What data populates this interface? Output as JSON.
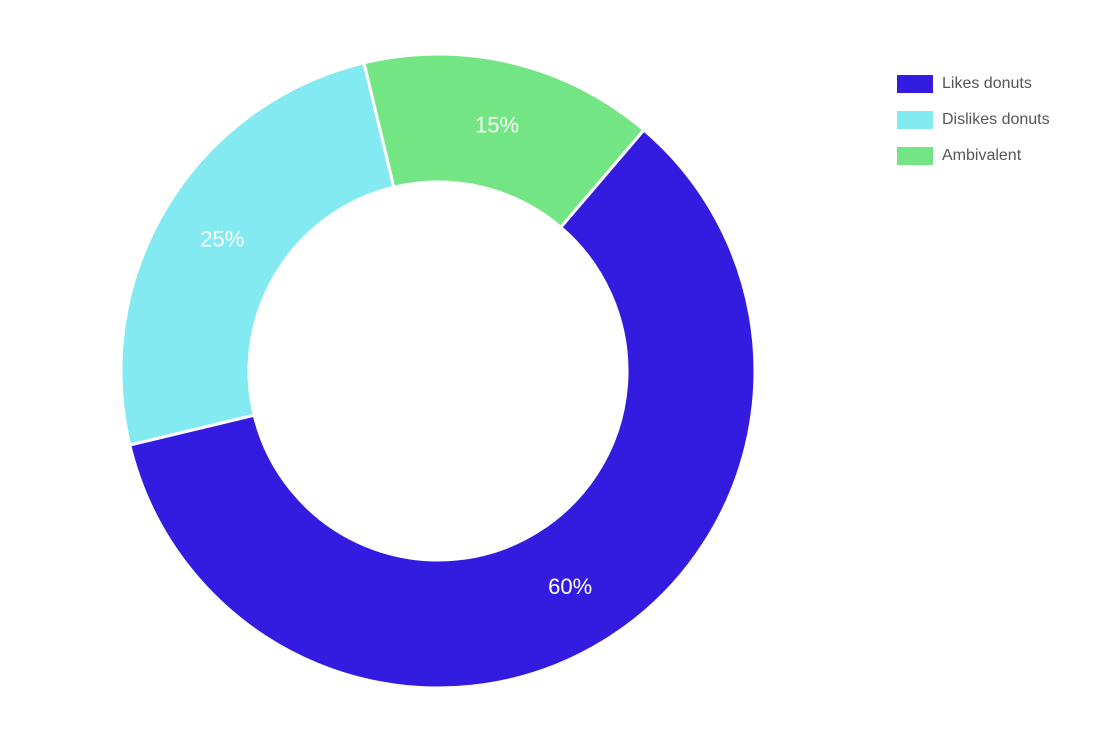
{
  "chart_data": {
    "type": "pie",
    "variant": "doughnut",
    "categories": [
      "Likes donuts",
      "Dislikes donuts",
      "Ambivalent"
    ],
    "values": [
      60,
      25,
      15
    ],
    "value_labels": [
      "60%",
      "25%",
      "15%"
    ],
    "colors": [
      "#341be0",
      "#84eaf1",
      "#73e584"
    ],
    "legend_position": "top-right",
    "title": ""
  }
}
